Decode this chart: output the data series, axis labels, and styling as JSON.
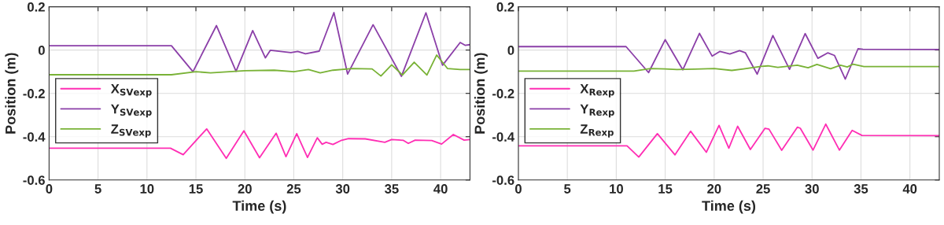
{
  "chart_data": [
    {
      "type": "line",
      "xlabel": "Time (s)",
      "ylabel": "Position (m)",
      "xlim": [
        0,
        43
      ],
      "xticks": [
        0,
        5,
        10,
        15,
        20,
        25,
        30,
        35,
        40
      ],
      "ylim": [
        -0.6,
        0.2
      ],
      "yticks": [
        -0.6,
        -0.4,
        -0.2,
        0,
        0.2
      ],
      "grid": true,
      "legend": "left",
      "line_style": "solid",
      "marker": "none",
      "series": [
        {
          "name": "X$_{SVexp}$",
          "color": "#ff2eb4",
          "x": [
            0,
            12.4,
            13.7,
            16.1,
            18.1,
            19.9,
            21.5,
            23.2,
            24.2,
            25.3,
            26.4,
            27.4,
            27.9,
            28.3,
            29.0,
            29.8,
            30.6,
            32.3,
            34.3,
            35.0,
            36.2,
            36.7,
            37.4,
            39.1,
            40.1,
            41.3,
            42.4,
            43
          ],
          "values": [
            -0.453,
            -0.453,
            -0.483,
            -0.364,
            -0.5,
            -0.373,
            -0.497,
            -0.384,
            -0.492,
            -0.386,
            -0.496,
            -0.405,
            -0.435,
            -0.426,
            -0.436,
            -0.418,
            -0.409,
            -0.41,
            -0.426,
            -0.413,
            -0.417,
            -0.431,
            -0.416,
            -0.418,
            -0.434,
            -0.39,
            -0.416,
            -0.413
          ]
        },
        {
          "name": "Y$_{SVexp}$",
          "color": "#8b3fa8",
          "x": [
            0,
            12.5,
            14.7,
            17.1,
            19.1,
            20.8,
            22.1,
            22.6,
            24.7,
            25.4,
            26.2,
            27.6,
            29.1,
            30.5,
            33.1,
            36.0,
            38.5,
            40.2,
            42.0,
            42.5,
            43
          ],
          "values": [
            0.02,
            0.02,
            -0.1,
            0.113,
            -0.098,
            0.09,
            -0.036,
            -0.001,
            -0.012,
            -0.006,
            -0.017,
            -0.005,
            0.173,
            -0.111,
            0.117,
            -0.121,
            0.172,
            -0.07,
            0.035,
            0.022,
            0.025
          ]
        },
        {
          "name": "Z$_{SVexp}$",
          "color": "#79b236",
          "x": [
            0,
            12.5,
            15,
            16.5,
            20,
            23,
            25,
            26.5,
            27.7,
            29,
            31,
            33,
            33.9,
            35,
            36.1,
            37.3,
            38.6,
            39.6,
            40.7,
            42,
            43
          ],
          "values": [
            -0.114,
            -0.114,
            -0.1,
            -0.105,
            -0.095,
            -0.093,
            -0.1,
            -0.09,
            -0.105,
            -0.093,
            -0.085,
            -0.087,
            -0.12,
            -0.068,
            -0.115,
            -0.056,
            -0.115,
            -0.023,
            -0.085,
            -0.09,
            -0.09
          ]
        }
      ]
    },
    {
      "type": "line",
      "xlabel": "Time (s)",
      "ylabel": "Position (m)",
      "xlim": [
        0,
        43
      ],
      "xticks": [
        0,
        5,
        10,
        15,
        20,
        25,
        30,
        35,
        40
      ],
      "ylim": [
        -0.6,
        0.2
      ],
      "yticks": [
        -0.6,
        -0.4,
        -0.2,
        0,
        0.2
      ],
      "grid": true,
      "legend": "left",
      "line_style": "solid",
      "marker": "none",
      "series": [
        {
          "name": "X$_{Rexp}$",
          "color": "#ff2eb4",
          "x": [
            0,
            11.1,
            12.3,
            14.2,
            16.0,
            17.6,
            19.2,
            20.5,
            21.5,
            22.4,
            23.7,
            25.2,
            25.6,
            26.9,
            28.5,
            28.8,
            30.1,
            31.4,
            32.8,
            34.1,
            35.1,
            43
          ],
          "values": [
            -0.442,
            -0.442,
            -0.494,
            -0.386,
            -0.484,
            -0.375,
            -0.472,
            -0.348,
            -0.453,
            -0.352,
            -0.459,
            -0.361,
            -0.365,
            -0.463,
            -0.356,
            -0.361,
            -0.462,
            -0.342,
            -0.462,
            -0.371,
            -0.394,
            -0.395
          ]
        },
        {
          "name": "Y$_{Rexp}$",
          "color": "#8b3fa8",
          "x": [
            0,
            11.0,
            13.3,
            15.0,
            16.8,
            18.5,
            19.8,
            20.6,
            21.6,
            22.6,
            23.2,
            24.4,
            26.0,
            27.7,
            29.3,
            30.6,
            31.6,
            32.3,
            33.4,
            34.7,
            35.2,
            43
          ],
          "values": [
            0.016,
            0.016,
            -0.104,
            0.048,
            -0.091,
            0.077,
            -0.028,
            -0.006,
            -0.018,
            -0.003,
            -0.013,
            -0.111,
            0.067,
            -0.089,
            0.076,
            -0.038,
            -0.013,
            -0.025,
            -0.134,
            0.006,
            0.004,
            0.003
          ]
        },
        {
          "name": "Z$_{Rexp}$",
          "color": "#79b236",
          "x": [
            0,
            11.8,
            13.5,
            15,
            16.2,
            18,
            20,
            21.8,
            23,
            24.8,
            25.5,
            26.5,
            28.5,
            29.6,
            30.5,
            31.9,
            32.9,
            33.6,
            34.2,
            35.3,
            43
          ],
          "values": [
            -0.097,
            -0.097,
            -0.085,
            -0.087,
            -0.09,
            -0.088,
            -0.085,
            -0.094,
            -0.087,
            -0.075,
            -0.073,
            -0.08,
            -0.07,
            -0.082,
            -0.066,
            -0.086,
            -0.07,
            -0.078,
            -0.065,
            -0.076,
            -0.076
          ]
        }
      ]
    }
  ]
}
